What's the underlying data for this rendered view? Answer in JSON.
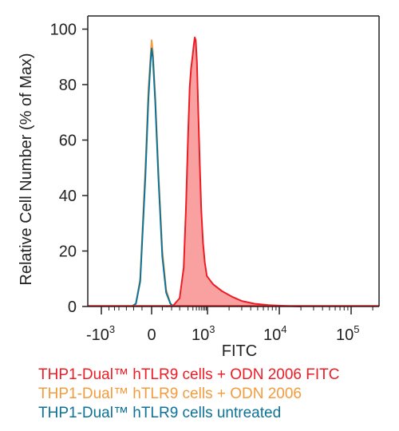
{
  "chart_data": {
    "type": "area",
    "xlabel": "FITC",
    "ylabel": "Relative Cell Number (% of Max)",
    "ylim": [
      0,
      100
    ],
    "x_scale": "biexponential",
    "x_ticks": [
      {
        "label": "-10",
        "exp": "3"
      },
      {
        "label": "0",
        "exp": ""
      },
      {
        "label": "10",
        "exp": "3"
      },
      {
        "label": "10",
        "exp": "4"
      },
      {
        "label": "10",
        "exp": "5"
      }
    ],
    "y_ticks": [
      "0",
      "20",
      "40",
      "60",
      "80",
      "100"
    ],
    "grid": false,
    "legend_position": "bottom",
    "series": [
      {
        "name": "THP1-Dual™ hTLR9 cells + ODN 2006 FITC",
        "color": "#ee1c25",
        "fill": "#f9a1a1",
        "filled": true,
        "points": [
          [
            30,
            0
          ],
          [
            60,
            0.5
          ],
          [
            100,
            3
          ],
          [
            140,
            14
          ],
          [
            170,
            36
          ],
          [
            200,
            61
          ],
          [
            230,
            79
          ],
          [
            260,
            86
          ],
          [
            290,
            90
          ],
          [
            320,
            94
          ],
          [
            350,
            97
          ],
          [
            380,
            96
          ],
          [
            420,
            88
          ],
          [
            470,
            70
          ],
          [
            530,
            51
          ],
          [
            600,
            35
          ],
          [
            690,
            23
          ],
          [
            800,
            16
          ],
          [
            950,
            11
          ],
          [
            1200,
            8
          ],
          [
            1600,
            5.5
          ],
          [
            2200,
            3.5
          ],
          [
            3000,
            2
          ],
          [
            4500,
            1
          ],
          [
            7000,
            0.5
          ],
          [
            12000,
            0.2
          ],
          [
            20000,
            0
          ]
        ]
      },
      {
        "name": "THP1-Dual™ hTLR9 cells + ODN 2006",
        "color": "#f39c3d",
        "fill": "none",
        "filled": false,
        "points": [
          [
            -60,
            0
          ],
          [
            -40,
            1
          ],
          [
            -25,
            10
          ],
          [
            -12,
            50
          ],
          [
            -6,
            78
          ],
          [
            -2,
            90
          ],
          [
            0,
            96
          ],
          [
            2,
            92
          ],
          [
            6,
            76
          ],
          [
            12,
            48
          ],
          [
            20,
            20
          ],
          [
            30,
            6
          ],
          [
            45,
            1
          ],
          [
            60,
            0
          ]
        ]
      },
      {
        "name": "THP1-Dual™ hTLR9 cells untreated",
        "color": "#0d7298",
        "fill": "none",
        "filled": false,
        "points": [
          [
            -60,
            0
          ],
          [
            -40,
            1
          ],
          [
            -25,
            9
          ],
          [
            -12,
            47
          ],
          [
            -6,
            75
          ],
          [
            -2,
            88
          ],
          [
            0,
            93
          ],
          [
            2,
            90
          ],
          [
            6,
            74
          ],
          [
            12,
            46
          ],
          [
            20,
            18
          ],
          [
            30,
            5
          ],
          [
            45,
            1
          ],
          [
            60,
            0
          ]
        ]
      }
    ]
  }
}
